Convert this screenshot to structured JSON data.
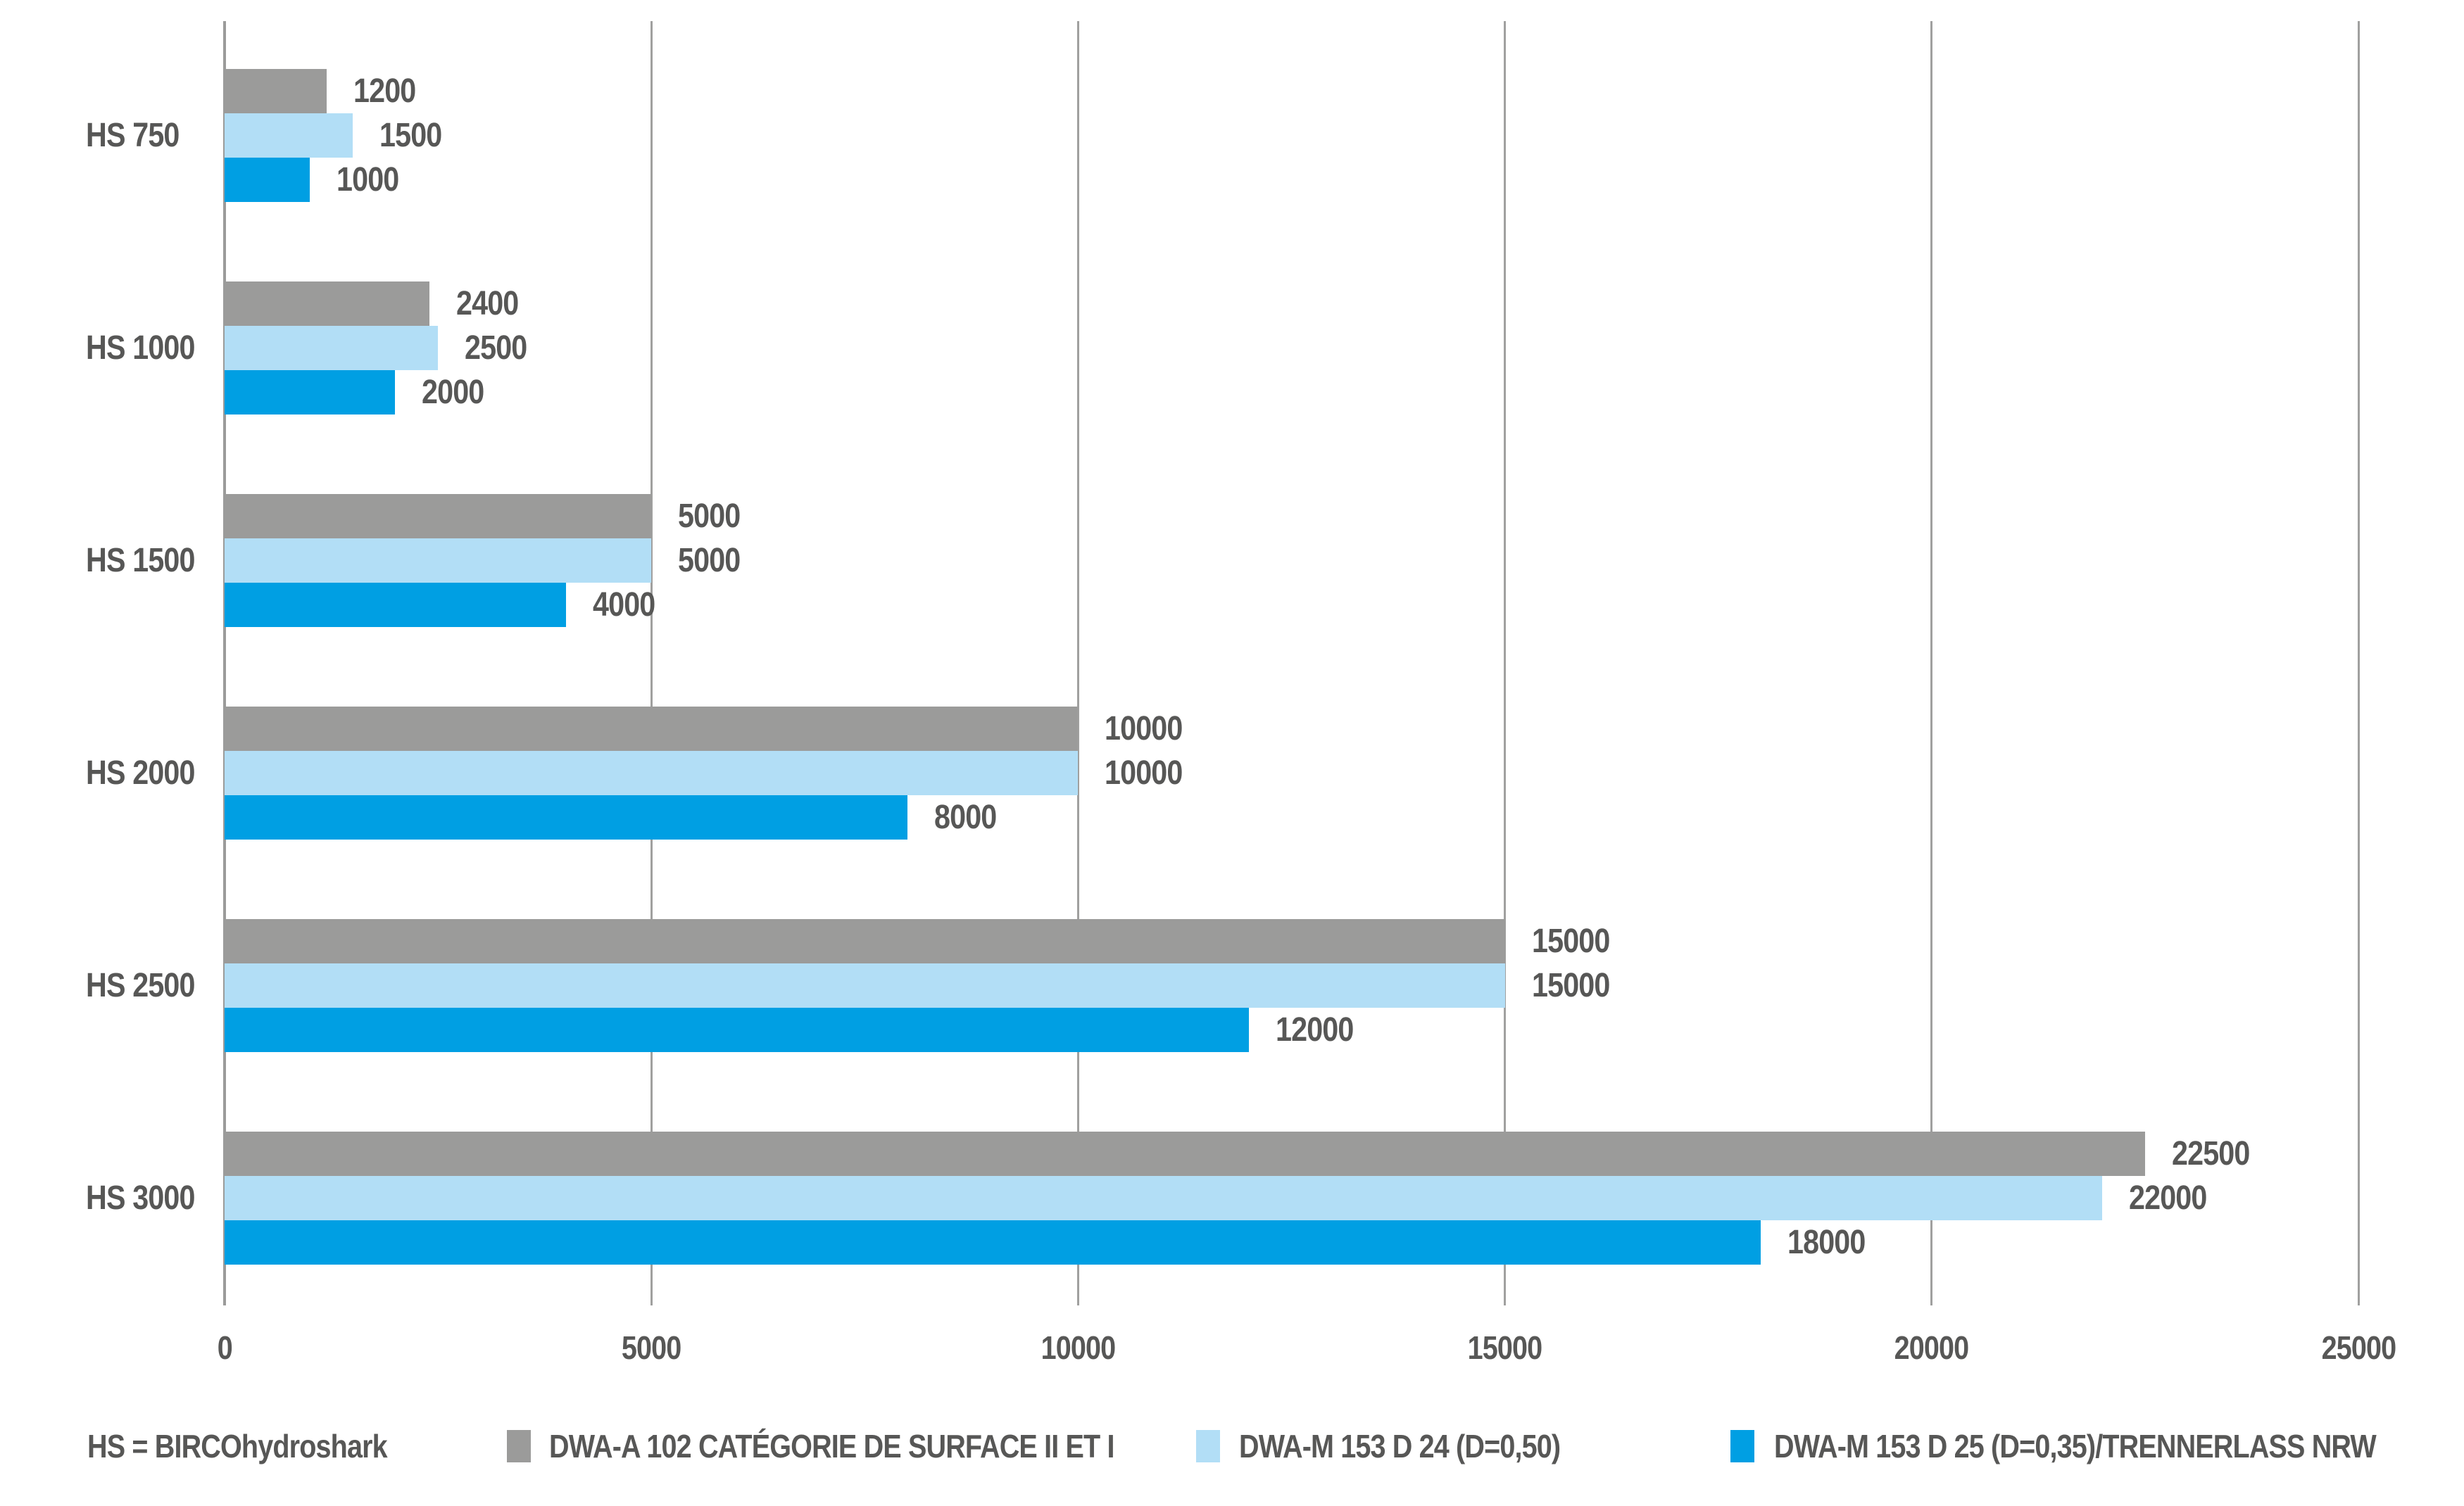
{
  "chart_data": {
    "type": "bar",
    "orientation": "horizontal",
    "title": "",
    "xlabel": "",
    "ylabel": "",
    "grid": "vertical-gridlines-on",
    "legend_position": "bottom",
    "legend_note": "HS = BIRCOhydroshark",
    "categories": [
      "HS 750",
      "HS 1000",
      "HS 1500",
      "HS 2000",
      "HS 2500",
      "HS 3000"
    ],
    "series": [
      {
        "name": "DWA-A 102 CATÉGORIE DE SURFACE II ET I",
        "color": "#9b9b9a",
        "values": [
          1200,
          2400,
          5000,
          10000,
          15000,
          22500
        ]
      },
      {
        "name": "DWA-M 153 D 24 (D=0,50)",
        "color": "#b2def6",
        "values": [
          1500,
          2500,
          5000,
          10000,
          15000,
          22000
        ]
      },
      {
        "name": "DWA-M 153 D 25 (D=0,35)/TRENNERLASS NRW",
        "color": "#009fe3",
        "values": [
          1000,
          2000,
          4000,
          8000,
          12000,
          18000
        ]
      }
    ],
    "x_axis": {
      "min": 0,
      "max": 25000,
      "tick_step": 5000,
      "ticks": [
        "0",
        "5000",
        "10000",
        "15000",
        "20000",
        "25000"
      ]
    },
    "value_labels_shown": true,
    "colors": {
      "text": "#575756",
      "gridline": "#a0a09f",
      "axis": "#9b9b9a",
      "background": "#ffffff"
    }
  }
}
